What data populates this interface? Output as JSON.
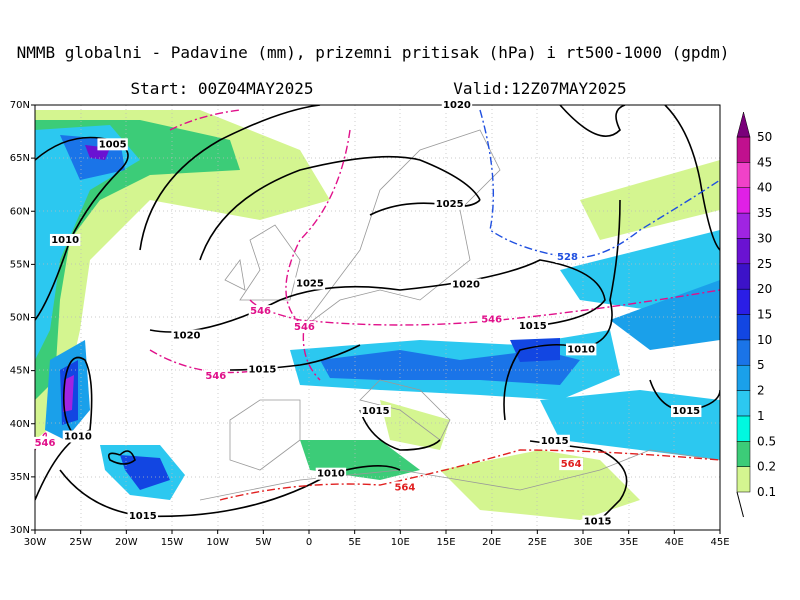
{
  "header": {
    "title": "NMMB globalni - Padavine (mm), prizemni pritisak (hPa) i rt500-1000 (gpdm)",
    "start": "Start: 00Z04MAY2025",
    "valid": "Valid:12Z07MAY2025"
  },
  "map": {
    "lonlim": [
      -30,
      45
    ],
    "latlim": [
      30,
      70
    ],
    "lat_ticks": [
      {
        "value": 30,
        "label": "30N"
      },
      {
        "value": 35,
        "label": "35N"
      },
      {
        "value": 40,
        "label": "40N"
      },
      {
        "value": 45,
        "label": "45N"
      },
      {
        "value": 50,
        "label": "50N"
      },
      {
        "value": 55,
        "label": "55N"
      },
      {
        "value": 60,
        "label": "60N"
      },
      {
        "value": 65,
        "label": "65N"
      },
      {
        "value": 70,
        "label": "70N"
      }
    ],
    "lon_ticks": [
      {
        "value": -30,
        "label": "30W"
      },
      {
        "value": -25,
        "label": "25W"
      },
      {
        "value": -20,
        "label": "20W"
      },
      {
        "value": -15,
        "label": "15W"
      },
      {
        "value": -10,
        "label": "10W"
      },
      {
        "value": -5,
        "label": "5W"
      },
      0,
      {
        "value": 5,
        "label": "5E"
      },
      {
        "value": 10,
        "label": "10E"
      },
      {
        "value": 15,
        "label": "15E"
      },
      {
        "value": 20,
        "label": "20E"
      },
      {
        "value": 25,
        "label": "25E"
      },
      {
        "value": 30,
        "label": "30E"
      },
      {
        "value": 35,
        "label": "35E"
      },
      {
        "value": 40,
        "label": "40E"
      },
      {
        "value": 45,
        "label": "45E"
      }
    ],
    "contour_labels": [
      {
        "text": "1020",
        "lon": 16.2,
        "lat": 70,
        "color": "#000000"
      },
      {
        "text": "1005",
        "lon": -21.5,
        "lat": 66.3,
        "color": "#000000"
      },
      {
        "text": "1010",
        "lon": -26.7,
        "lat": 57.3,
        "color": "#000000"
      },
      {
        "text": "1025",
        "lon": 15.4,
        "lat": 60.7,
        "color": "#000000"
      },
      {
        "text": "1025",
        "lon": 0.1,
        "lat": 53.2,
        "color": "#000000"
      },
      {
        "text": "1020",
        "lon": 17.2,
        "lat": 53.1,
        "color": "#000000"
      },
      {
        "text": "1020",
        "lon": -13.4,
        "lat": 48.3,
        "color": "#000000"
      },
      {
        "text": "1015",
        "lon": 24.5,
        "lat": 49.2,
        "color": "#000000"
      },
      {
        "text": "1010",
        "lon": 29.8,
        "lat": 47.0,
        "color": "#000000"
      },
      {
        "text": "1015",
        "lon": -5.1,
        "lat": 45.1,
        "color": "#000000"
      },
      {
        "text": "1015",
        "lon": 7.3,
        "lat": 41.2,
        "color": "#000000"
      },
      {
        "text": "1010",
        "lon": -25.3,
        "lat": 38.8,
        "color": "#000000"
      },
      {
        "text": "1015",
        "lon": 26.9,
        "lat": 38.4,
        "color": "#000000"
      },
      {
        "text": "1015",
        "lon": 41.3,
        "lat": 41.2,
        "color": "#000000"
      },
      {
        "text": "1010",
        "lon": 2.4,
        "lat": 35.3,
        "color": "#000000"
      },
      {
        "text": "1015",
        "lon": -18.2,
        "lat": 31.3,
        "color": "#000000"
      },
      {
        "text": "1015",
        "lon": 31.6,
        "lat": 30.8,
        "color": "#000000"
      },
      {
        "text": "546",
        "lon": -5.3,
        "lat": 50.6,
        "color": "#e0108a"
      },
      {
        "text": "546",
        "lon": -0.5,
        "lat": 49.1,
        "color": "#e0108a"
      },
      {
        "text": "546",
        "lon": -10.2,
        "lat": 44.5,
        "color": "#e0108a"
      },
      {
        "text": "546",
        "lon": 20.0,
        "lat": 49.8,
        "color": "#e0108a"
      },
      {
        "text": "546",
        "lon": -28.9,
        "lat": 38.2,
        "color": "#e0108a"
      },
      {
        "text": "528",
        "lon": 28.3,
        "lat": 55.7,
        "color": "#2050e0"
      },
      {
        "text": "564",
        "lon": 28.7,
        "lat": 36.2,
        "color": "#e02020"
      },
      {
        "text": "564",
        "lon": 10.5,
        "lat": 34.0,
        "color": "#e02020"
      }
    ]
  },
  "colorbar": {
    "labels": [
      "0.1",
      "0.2",
      "0.5",
      "1",
      "2",
      "5",
      "10",
      "15",
      "20",
      "25",
      "30",
      "35",
      "40",
      "45",
      "50"
    ],
    "colors": [
      "#d4f590",
      "#3ccc78",
      "#00f8e0",
      "#2cc8f0",
      "#1aa0ea",
      "#1a74e8",
      "#1246e2",
      "#2a1ee6",
      "#3c12c8",
      "#6a12d2",
      "#a024e2",
      "#e020e6",
      "#f042c8",
      "#c0108e",
      "#7a007a"
    ]
  }
}
